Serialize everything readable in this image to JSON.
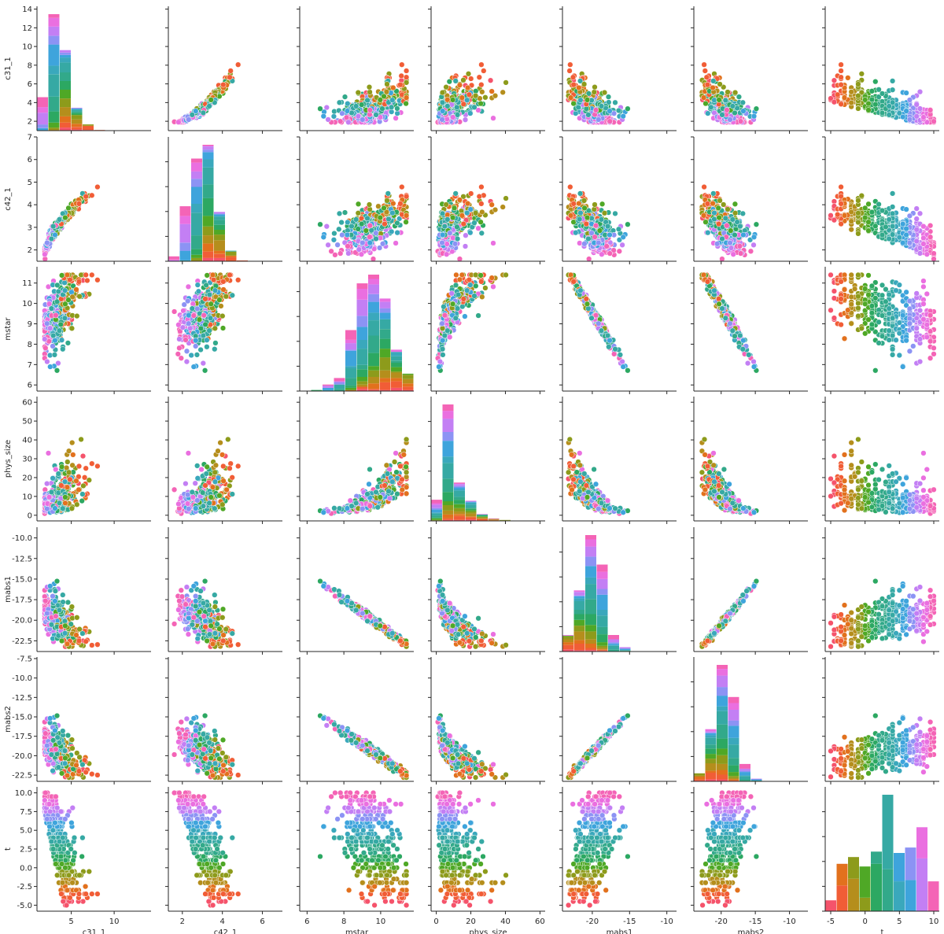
{
  "figure": {
    "background": "#ffffff",
    "marker_edge_color": "#ffffff"
  },
  "chart_data": {
    "type": "scatter",
    "kind": "pairplot",
    "hue_palette": [
      "#f5536b",
      "#f15d36",
      "#e2711d",
      "#b58e1c",
      "#8d9b1b",
      "#4fa826",
      "#2ca862",
      "#32a98a",
      "#36a9a4",
      "#3aa8bc",
      "#3ea4dc",
      "#8c93f4",
      "#c37ff4",
      "#ea6fe0",
      "#f464b6"
    ],
    "diagonal": "histogram",
    "variables": [
      {
        "name": "c31_1",
        "ylim": [
          1.0,
          14.3
        ],
        "yticks": [
          2,
          4,
          6,
          8,
          10,
          12,
          14
        ],
        "xlim": [
          1.0,
          14.3
        ],
        "xticks": [
          5,
          10
        ]
      },
      {
        "name": "c42_1",
        "ylim": [
          1.5,
          7.0
        ],
        "yticks": [
          2,
          3,
          4,
          5,
          6,
          7
        ],
        "xlim": [
          1.3,
          7.0
        ],
        "xticks": [
          2,
          4,
          6
        ]
      },
      {
        "name": "mstar",
        "ylim": [
          5.7,
          11.8
        ],
        "yticks": [
          6,
          7,
          8,
          9,
          10,
          11
        ],
        "xlim": [
          5.6,
          11.8
        ],
        "xticks": [
          6,
          8,
          10
        ]
      },
      {
        "name": "phys_size",
        "ylim": [
          -3,
          63
        ],
        "yticks": [
          0,
          10,
          20,
          30,
          40,
          50,
          60
        ],
        "xlim": [
          -3,
          63
        ],
        "xticks": [
          0,
          20,
          40,
          60
        ]
      },
      {
        "name": "mabs1",
        "ylim": [
          -23.8,
          -8.7
        ],
        "yticks": [
          -22.5,
          -20.0,
          -17.5,
          -15.0,
          -12.5,
          -10.0
        ],
        "tick_format": "1dp",
        "xlim": [
          -24.0,
          -8.7
        ],
        "xticks": [
          -20,
          -15,
          -10
        ]
      },
      {
        "name": "mabs2",
        "ylim": [
          -23.3,
          -7.3
        ],
        "yticks": [
          -22.5,
          -20.0,
          -17.5,
          -15.0,
          -12.5,
          -10.0,
          -7.5
        ],
        "tick_format": "1dp",
        "xlim": [
          -24.0,
          -7.3
        ],
        "xticks": [
          -20,
          -15,
          -10
        ]
      },
      {
        "name": "t",
        "ylim": [
          -5.8,
          10.8
        ],
        "yticks": [
          -5.0,
          -2.5,
          0.0,
          2.5,
          5.0,
          7.5,
          10.0
        ],
        "tick_format": "1dp",
        "xlim": [
          -5.8,
          10.8
        ],
        "xticks": [
          -5,
          0,
          5,
          10
        ]
      }
    ]
  }
}
